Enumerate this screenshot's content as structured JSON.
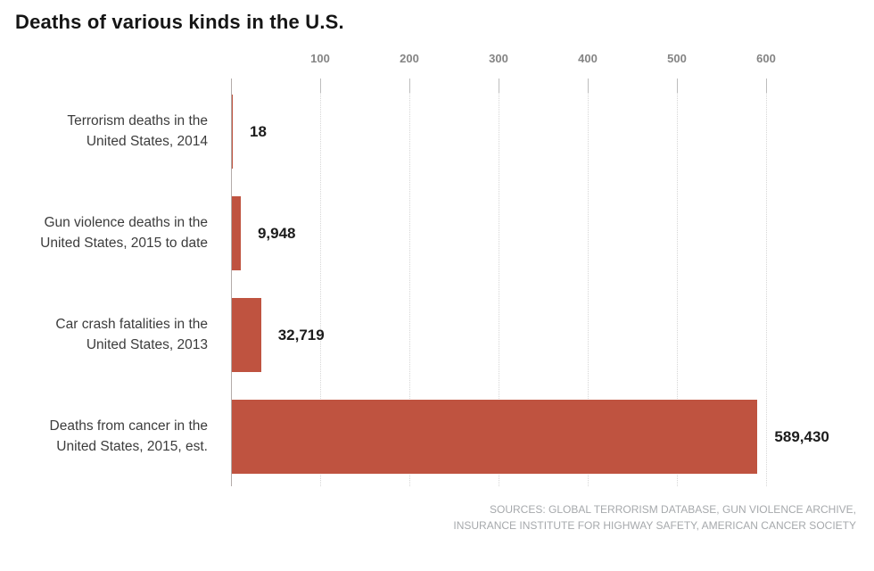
{
  "chart_data": {
    "type": "bar",
    "orientation": "horizontal",
    "title": "Deaths of various kinds in the U.S.",
    "categories": [
      "Terrorism deaths in the United States, 2014",
      "Gun violence deaths in the United States, 2015 to date",
      "Car crash fatalities in the United States, 2013",
      "Deaths from cancer in the United States, 2015, est."
    ],
    "category_lines": [
      [
        "Terrorism deaths in the",
        "United States, 2014"
      ],
      [
        "Gun violence deaths in the",
        "United States, 2015 to date"
      ],
      [
        "Car crash fatalities in the",
        "United States, 2013"
      ],
      [
        "Deaths from cancer in the",
        "United States, 2015, est."
      ]
    ],
    "values": [
      18,
      9948,
      32719,
      589430
    ],
    "value_labels": [
      "18",
      "9,948",
      "32,719",
      "589,430"
    ],
    "x_ticks": [
      "100",
      "200",
      "300",
      "400",
      "500",
      "600"
    ],
    "x_tick_values": [
      100000,
      200000,
      300000,
      400000,
      500000,
      600000
    ],
    "x_tick_scale": 1000,
    "xlim": [
      0,
      700000
    ],
    "grid": true,
    "legend": "none",
    "bar_color": "#bf5340"
  },
  "sources": {
    "line1": "SOURCES: GLOBAL TERRORISM DATABASE, GUN VIOLENCE ARCHIVE,",
    "line2": "INSURANCE INSTITUTE FOR HIGHWAY SAFETY, AMERICAN CANCER SOCIETY"
  }
}
